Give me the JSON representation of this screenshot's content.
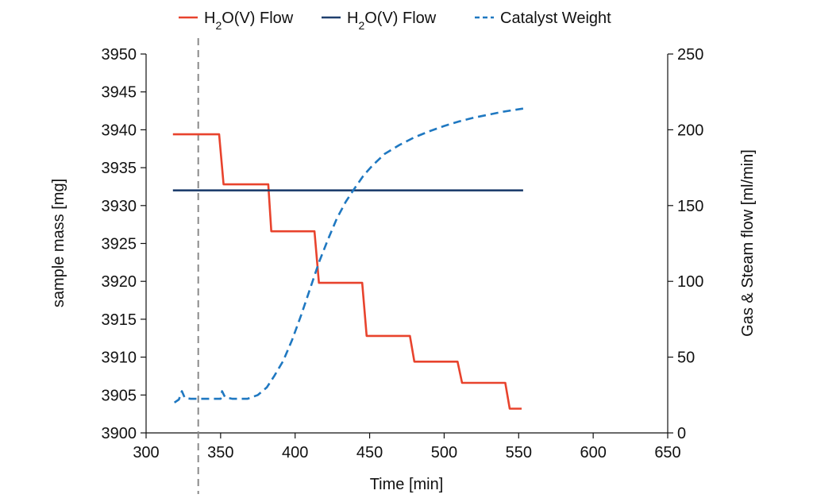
{
  "chart_data": {
    "type": "line",
    "xlabel": "Time [min]",
    "ylabel_left": "sample mass [mg]",
    "ylabel_right": "Gas & Steam flow [ml/min]",
    "xlim": [
      300,
      650
    ],
    "ylim_left": [
      3900,
      3950
    ],
    "ylim_right": [
      0,
      250
    ],
    "x_ticks": [
      300,
      350,
      400,
      450,
      500,
      550,
      600,
      650
    ],
    "y_left_ticks": [
      3900,
      3905,
      3910,
      3915,
      3920,
      3925,
      3930,
      3935,
      3940,
      3945,
      3950
    ],
    "y_right_ticks": [
      0,
      50,
      100,
      150,
      200,
      250
    ],
    "grid": false,
    "legend_position": "top",
    "vertical_marker_x": 335,
    "legend": [
      {
        "label_prefix": "H",
        "label_sub": "2",
        "label_suffix": "O(V) Flow",
        "color": "#e8432d",
        "style": "solid"
      },
      {
        "label_prefix": "H",
        "label_sub": "2",
        "label_suffix": "O(V) Flow",
        "color": "#1f3f6e",
        "style": "solid"
      },
      {
        "label_prefix": "Catalyst Weight",
        "label_sub": "",
        "label_suffix": "",
        "color": "#1f78c1",
        "style": "dashed"
      }
    ],
    "series": [
      {
        "axis": "right",
        "color": "#e8432d",
        "style": "solid",
        "points": [
          [
            318,
            197
          ],
          [
            349,
            197
          ],
          [
            352,
            164
          ],
          [
            382,
            164
          ],
          [
            384,
            133
          ],
          [
            413,
            133
          ],
          [
            416,
            99
          ],
          [
            445,
            99
          ],
          [
            448,
            64
          ],
          [
            477,
            64
          ],
          [
            480,
            47
          ],
          [
            509,
            47
          ],
          [
            512,
            33
          ],
          [
            541,
            33
          ],
          [
            544,
            16
          ],
          [
            552,
            16
          ]
        ]
      },
      {
        "axis": "right",
        "color": "#1f3f6e",
        "style": "solid",
        "points": [
          [
            318,
            160
          ],
          [
            553,
            160
          ]
        ]
      },
      {
        "axis": "left",
        "color": "#1f78c1",
        "style": "dashed",
        "points": [
          [
            319,
            3904.0
          ],
          [
            322,
            3904.4
          ],
          [
            324,
            3905.5
          ],
          [
            326,
            3904.6
          ],
          [
            330,
            3904.5
          ],
          [
            340,
            3904.5
          ],
          [
            350,
            3904.5
          ],
          [
            351,
            3905.5
          ],
          [
            353,
            3904.7
          ],
          [
            358,
            3904.5
          ],
          [
            368,
            3904.5
          ],
          [
            375,
            3905.0
          ],
          [
            381,
            3906.0
          ],
          [
            386,
            3907.5
          ],
          [
            392,
            3909.5
          ],
          [
            398,
            3912.3
          ],
          [
            404,
            3915.5
          ],
          [
            410,
            3919.0
          ],
          [
            416,
            3922.5
          ],
          [
            422,
            3925.5
          ],
          [
            428,
            3928.3
          ],
          [
            434,
            3930.5
          ],
          [
            440,
            3932.3
          ],
          [
            446,
            3934.0
          ],
          [
            452,
            3935.3
          ],
          [
            460,
            3936.8
          ],
          [
            470,
            3938.0
          ],
          [
            480,
            3939.0
          ],
          [
            490,
            3939.8
          ],
          [
            500,
            3940.5
          ],
          [
            510,
            3941.1
          ],
          [
            520,
            3941.6
          ],
          [
            530,
            3942.0
          ],
          [
            540,
            3942.4
          ],
          [
            553,
            3942.8
          ]
        ]
      }
    ]
  }
}
